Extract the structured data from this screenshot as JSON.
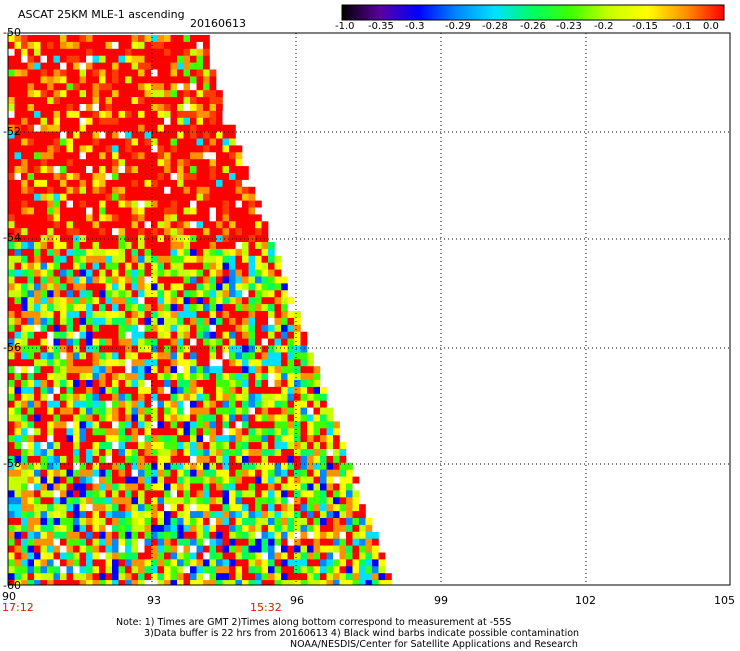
{
  "header": {
    "title": "ASCAT 25KM MLE-1 ascending",
    "date": "20160613"
  },
  "colorbar": {
    "labels": [
      "-1.0",
      "-0.35",
      "-0.3",
      "-0.29",
      "-0.28",
      "-0.26",
      "-0.23",
      "-0.2",
      "-0.15",
      "-0.1",
      "0.0"
    ],
    "stops": [
      "#000000",
      "#5a00a0",
      "#0000ff",
      "#0088ff",
      "#00e0ff",
      "#00ff60",
      "#40ff00",
      "#c8ff00",
      "#ffff00",
      "#ff9000",
      "#ff0000"
    ]
  },
  "axes": {
    "lat_labels": [
      "-50",
      "-52",
      "-54",
      "-56",
      "-58",
      "-60"
    ],
    "lon_labels": [
      "90",
      "93",
      "96",
      "99",
      "102",
      "105"
    ]
  },
  "times": {
    "t1": "17:12",
    "t2": "15:32"
  },
  "notes": {
    "line1": "Note: 1) Times are GMT 2)Times along bottom correspond to measurement at -55S",
    "line2": "3)Data buffer is 22 hrs from 20160613 4) Black wind barbs indicate possible contamination",
    "line3": "NOAA/NESDIS/Center for Satellite Applications and Research"
  }
}
